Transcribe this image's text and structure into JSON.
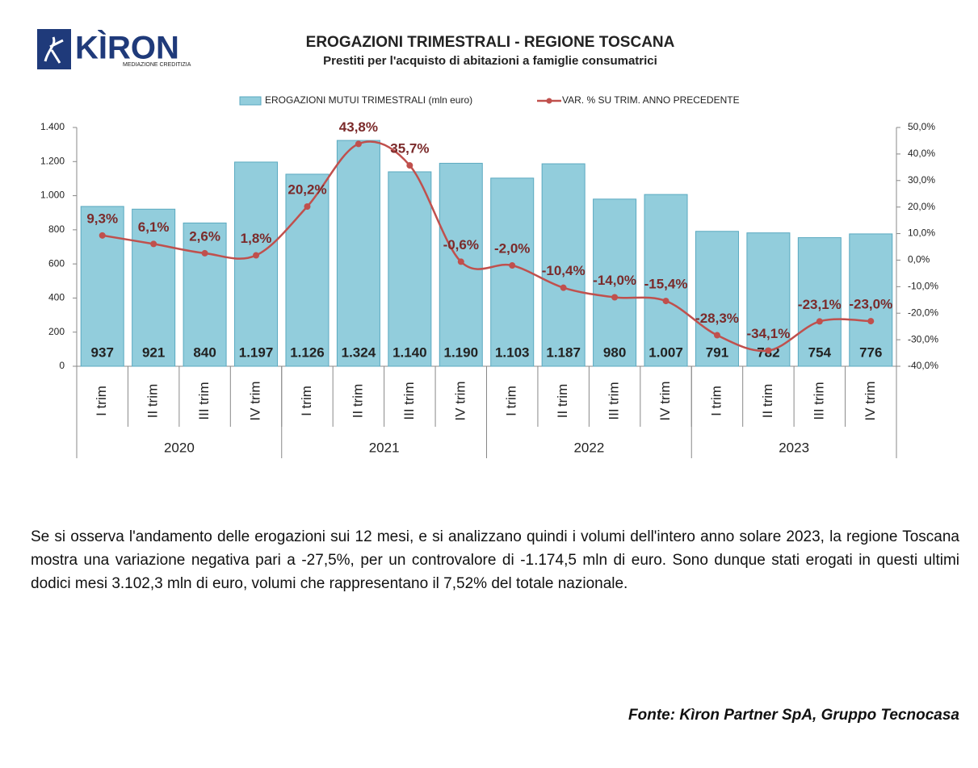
{
  "logo": {
    "name": "KÌRON",
    "tagline": "MEDIAZIONE CREDITIZIA"
  },
  "chart_data": {
    "type": "bar",
    "title": "EROGAZIONI TRIMESTRALI - REGIONE TOSCANA",
    "subtitle": "Prestiti per l'acquisto di abitazioni a famiglie consumatrici",
    "categories": [
      "I trim",
      "II trim",
      "III trim",
      "IV trim",
      "I trim",
      "II trim",
      "III trim",
      "IV trim",
      "I trim",
      "II trim",
      "III trim",
      "IV trim",
      "I trim",
      "II trim",
      "III trim",
      "IV trim"
    ],
    "category_groups": [
      "2020",
      "2021",
      "2022",
      "2023"
    ],
    "series": [
      {
        "name": "EROGAZIONI MUTUI TRIMESTRALI (mln euro)",
        "type": "bar",
        "color": "#92cddc",
        "values": [
          937,
          921,
          840,
          1197,
          1126,
          1324,
          1140,
          1190,
          1103,
          1187,
          980,
          1007,
          791,
          782,
          754,
          776
        ],
        "value_labels": [
          "937",
          "921",
          "840",
          "1.197",
          "1.126",
          "1.324",
          "1.140",
          "1.190",
          "1.103",
          "1.187",
          "980",
          "1.007",
          "791",
          "782",
          "754",
          "776"
        ]
      },
      {
        "name": "VAR. % SU TRIM. ANNO PRECEDENTE",
        "type": "line",
        "axis": "y2",
        "color": "#c0504d",
        "values": [
          9.3,
          6.1,
          2.6,
          1.8,
          20.2,
          43.8,
          35.7,
          -0.6,
          -2.0,
          -10.4,
          -14.0,
          -15.4,
          -28.3,
          -34.1,
          -23.1,
          -23.0
        ],
        "value_labels": [
          "9,3%",
          "6,1%",
          "2,6%",
          "1,8%",
          "20,2%",
          "43,8%",
          "35,7%",
          "-0,6%",
          "-2,0%",
          "-10,4%",
          "-14,0%",
          "-15,4%",
          "-28,3%",
          "-34,1%",
          "-23,1%",
          "-23,0%"
        ]
      }
    ],
    "ylim": [
      0,
      1400
    ],
    "yticks": [
      0,
      200,
      400,
      600,
      800,
      {
        "value": 1000,
        "label": "1.000"
      },
      {
        "value": 1200,
        "label": "1.200"
      },
      {
        "value": 1400,
        "label": "1.400"
      }
    ],
    "y2lim": [
      -40,
      50
    ],
    "y2ticks": [
      {
        "value": -40,
        "label": "-40,0%"
      },
      {
        "value": -30,
        "label": "-30,0%"
      },
      {
        "value": -20,
        "label": "-20,0%"
      },
      {
        "value": -10,
        "label": "-10,0%"
      },
      {
        "value": 0,
        "label": "0,0%"
      },
      {
        "value": 10,
        "label": "10,0%"
      },
      {
        "value": 20,
        "label": "20,0%"
      },
      {
        "value": 30,
        "label": "30,0%"
      },
      {
        "value": 40,
        "label": "40,0%"
      },
      {
        "value": 50,
        "label": "50,0%"
      }
    ],
    "grid": false,
    "legend": "top"
  },
  "body": {
    "paragraph": "Se si osserva l'andamento delle erogazioni sui 12 mesi, e si analizzano quindi i volumi dell'intero anno solare 2023, la regione Toscana mostra una variazione negativa pari a -27,5%, per un controvalore di -1.174,5 mln di euro. Sono dunque stati erogati in questi ultimi dodici mesi 3.102,3 mln di euro, volumi che rappresentano il 7,52% del totale nazionale.",
    "source": "Fonte: Kìron Partner SpA, Gruppo Tecnocasa"
  }
}
